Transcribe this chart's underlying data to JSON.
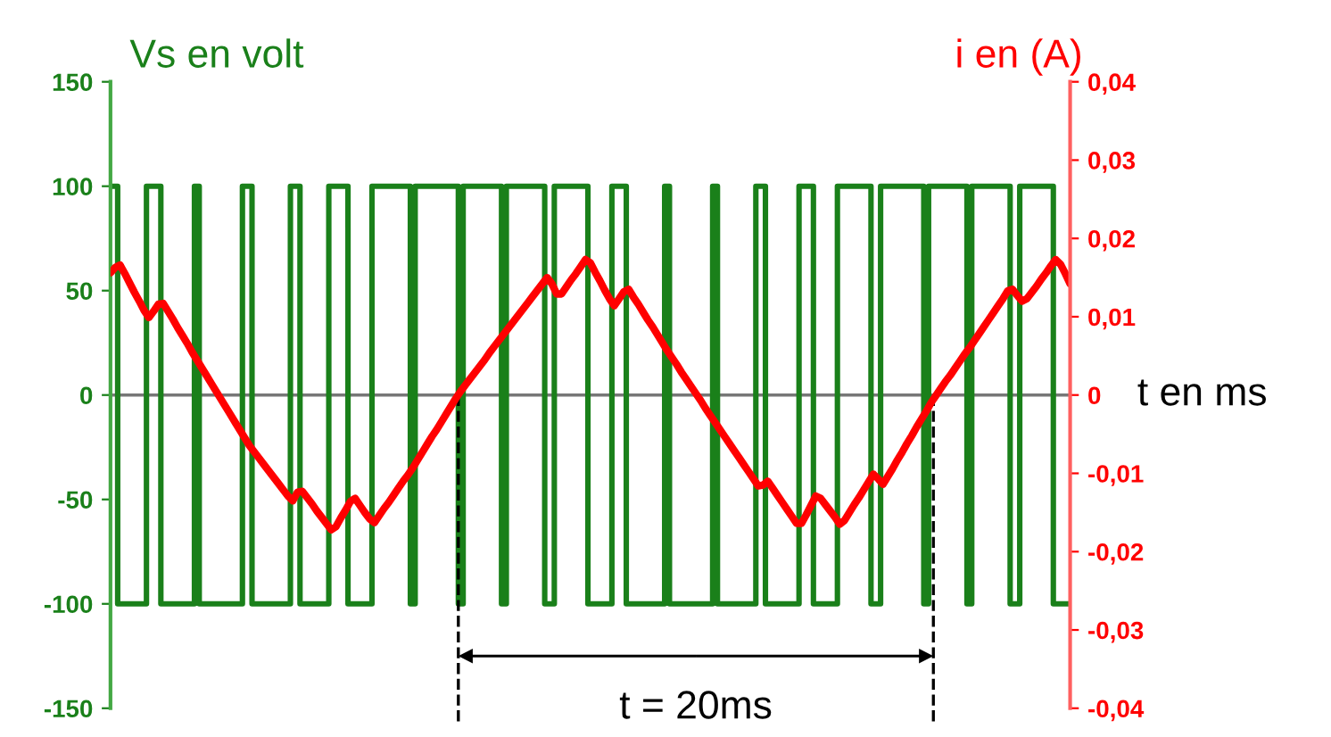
{
  "chart_data": {
    "type": "step",
    "ylabel": "Vs en volt",
    "y2label": "i en (A)",
    "xlabel": "t en ms",
    "annotations": [
      "t = 20ms"
    ],
    "categories": [
      null,
      null,
      null,
      null,
      null,
      null,
      null,
      null,
      null,
      null,
      null,
      null,
      null,
      null,
      null,
      null,
      null,
      null,
      null,
      null,
      null,
      null,
      null,
      null,
      null,
      null,
      null,
      null,
      null,
      null,
      null,
      null,
      null,
      null,
      null,
      null,
      null,
      null,
      null,
      null,
      null,
      null,
      null,
      null,
      null,
      null,
      null,
      null,
      null,
      null,
      null,
      null,
      null,
      null,
      null,
      null,
      null,
      null,
      null,
      null,
      null,
      null,
      null,
      null,
      null,
      null,
      null,
      null,
      null,
      null,
      null,
      null,
      null,
      null,
      null,
      null,
      null,
      null,
      null,
      null,
      null,
      null,
      null,
      null,
      null,
      null,
      null,
      null,
      null,
      null,
      null,
      null,
      null,
      null,
      null,
      null,
      null,
      null,
      null,
      null,
      null,
      null,
      null,
      null,
      null,
      null,
      null,
      null,
      null,
      null,
      null,
      null,
      null,
      null,
      null,
      null,
      null,
      null,
      null,
      null,
      null,
      null,
      null,
      null,
      null,
      null,
      null,
      null,
      null,
      null,
      null,
      null,
      null,
      null,
      null,
      null,
      null,
      null,
      null,
      null,
      null,
      null,
      null,
      null,
      null,
      null,
      null,
      null,
      null,
      null,
      null,
      null,
      null,
      null,
      null,
      null,
      null,
      null,
      null,
      null,
      null,
      null,
      null,
      null,
      null,
      null,
      null,
      null,
      null,
      null,
      null,
      null,
      null,
      null,
      null,
      null,
      null,
      null,
      null,
      null,
      null,
      null,
      null,
      null,
      null,
      null,
      null,
      null,
      null,
      null,
      null,
      null,
      null,
      null,
      null,
      null,
      null,
      null,
      null,
      null,
      null
    ],
    "ylim": [
      -150,
      150
    ],
    "yticks": [
      -150,
      -100,
      -50,
      0,
      50,
      100,
      150
    ],
    "y2lim": [
      -0.04,
      0.04
    ],
    "y2ticks": [
      {
        "value": -0.04,
        "label": "-0,04"
      },
      {
        "value": -0.03,
        "label": "-0,03"
      },
      {
        "value": -0.02,
        "label": "-0,02"
      },
      {
        "value": -0.01,
        "label": "-0,01"
      },
      {
        "value": 0,
        "label": "0"
      },
      {
        "value": 0.01,
        "label": "0,01"
      },
      {
        "value": 0.02,
        "label": "0,02"
      },
      {
        "value": 0.03,
        "label": "0,03"
      },
      {
        "value": 0.04,
        "label": "0,04"
      }
    ],
    "tick_labels": "y",
    "grid": false,
    "ref_lines": [
      {
        "axis": "y",
        "value": 0,
        "color": "#777777"
      }
    ],
    "series": [
      {
        "color": "#1a801a",
        "values": [
          100,
          100,
          -100,
          -100,
          -100,
          -100,
          -100,
          -100,
          100,
          100,
          100,
          -100,
          -100,
          -100,
          -100,
          -100,
          -100,
          -100,
          100,
          -100,
          -100,
          -100,
          -100,
          -100,
          -100,
          -100,
          -100,
          -100,
          100,
          100,
          -100,
          -100,
          -100,
          -100,
          -100,
          -100,
          -100,
          -100,
          100,
          100,
          -100,
          -100,
          -100,
          -100,
          -100,
          -100,
          100,
          100,
          100,
          100,
          -100,
          -100,
          -100,
          -100,
          -100,
          100,
          100,
          100,
          100,
          100,
          100,
          100,
          100,
          -100,
          100,
          100,
          100,
          100,
          100,
          100,
          100,
          100,
          100,
          -100,
          100,
          100,
          100,
          100,
          100,
          100,
          100,
          100,
          -100,
          100,
          100,
          100,
          100,
          100,
          100,
          100,
          100,
          -100,
          -100,
          100,
          100,
          100,
          100,
          100,
          100,
          100,
          -100,
          -100,
          -100,
          -100,
          -100,
          100,
          100,
          100,
          -100,
          -100,
          -100,
          -100,
          -100,
          -100,
          -100,
          -100,
          100,
          -100,
          -100,
          -100,
          -100,
          -100,
          -100,
          -100,
          -100,
          -100,
          100,
          -100,
          -100,
          -100,
          -100,
          -100,
          -100,
          -100,
          -100,
          100,
          100,
          -100,
          -100,
          -100,
          -100,
          -100,
          -100,
          -100,
          100,
          100,
          100,
          -100,
          -100,
          -100,
          -100,
          -100,
          100,
          100,
          100,
          100,
          100,
          100,
          100,
          -100,
          -100,
          100,
          100,
          100,
          100,
          100,
          100,
          100,
          100,
          100,
          -100,
          100,
          100,
          100,
          100,
          100,
          100,
          100,
          100,
          -100,
          100,
          100,
          100,
          100,
          100,
          100,
          100,
          100,
          -100,
          -100,
          100,
          100,
          100,
          100,
          100,
          100,
          100,
          -100,
          -100,
          -100,
          -100
        ]
      },
      {
        "type": "line",
        "axis": "y2",
        "color": "#ff0000",
        "values": [
          0.0156,
          0.0163,
          0.0166,
          0.0155,
          0.0143,
          0.0131,
          0.012,
          0.0108,
          0.0099,
          0.0107,
          0.0116,
          0.0117,
          0.0107,
          0.0097,
          0.0086,
          0.0076,
          0.0066,
          0.0055,
          0.0045,
          0.0035,
          0.0025,
          0.0015,
          0.0005,
          -0.0005,
          -0.0015,
          -0.0025,
          -0.0035,
          -0.0045,
          -0.0055,
          -0.0065,
          -0.0073,
          -0.0081,
          -0.0089,
          -0.0097,
          -0.0105,
          -0.0113,
          -0.0121,
          -0.0129,
          -0.0135,
          -0.0124,
          -0.0123,
          -0.0131,
          -0.0139,
          -0.0148,
          -0.0156,
          -0.0164,
          -0.0172,
          -0.0168,
          -0.0157,
          -0.0147,
          -0.0136,
          -0.0132,
          -0.0141,
          -0.015,
          -0.0158,
          -0.0163,
          -0.0154,
          -0.0145,
          -0.0137,
          -0.0128,
          -0.0119,
          -0.011,
          -0.0102,
          -0.0093,
          -0.0083,
          -0.0073,
          -0.0063,
          -0.0053,
          -0.0044,
          -0.0034,
          -0.0024,
          -0.0014,
          -0.0004,
          0.0005,
          0.0013,
          0.0021,
          0.0029,
          0.0037,
          0.0045,
          0.0054,
          0.0062,
          0.007,
          0.0078,
          0.0086,
          0.0094,
          0.0102,
          0.011,
          0.0118,
          0.0126,
          0.0134,
          0.0142,
          0.015,
          0.0142,
          0.0129,
          0.0129,
          0.0138,
          0.0147,
          0.0155,
          0.0164,
          0.0173,
          0.0169,
          0.0157,
          0.0146,
          0.0134,
          0.0123,
          0.0114,
          0.0123,
          0.0132,
          0.0135,
          0.0125,
          0.0116,
          0.0106,
          0.0096,
          0.0087,
          0.0077,
          0.0067,
          0.0057,
          0.0048,
          0.0039,
          0.0029,
          0.002,
          0.0011,
          0.0002,
          -0.0007,
          -0.0017,
          -0.0026,
          -0.0035,
          -0.0044,
          -0.0053,
          -0.0062,
          -0.0071,
          -0.008,
          -0.0089,
          -0.0098,
          -0.0107,
          -0.0116,
          -0.0115,
          -0.011,
          -0.0119,
          -0.0128,
          -0.0137,
          -0.0146,
          -0.0155,
          -0.0164,
          -0.0164,
          -0.0153,
          -0.0141,
          -0.0129,
          -0.0132,
          -0.014,
          -0.0148,
          -0.0156,
          -0.0165,
          -0.016,
          -0.015,
          -0.014,
          -0.0131,
          -0.0121,
          -0.0111,
          -0.0101,
          -0.0107,
          -0.0114,
          -0.0104,
          -0.0094,
          -0.0083,
          -0.0073,
          -0.0062,
          -0.0052,
          -0.0041,
          -0.0031,
          -0.0021,
          -0.001,
          -0.0001,
          0.0008,
          0.0017,
          0.0025,
          0.0034,
          0.0043,
          0.0052,
          0.006,
          0.0069,
          0.0078,
          0.0087,
          0.0096,
          0.0105,
          0.0114,
          0.0123,
          0.0133,
          0.0135,
          0.0127,
          0.012,
          0.0123,
          0.0131,
          0.0139,
          0.0148,
          0.0156,
          0.0165,
          0.0173,
          0.0167,
          0.0155,
          0.0142
        ]
      }
    ]
  }
}
